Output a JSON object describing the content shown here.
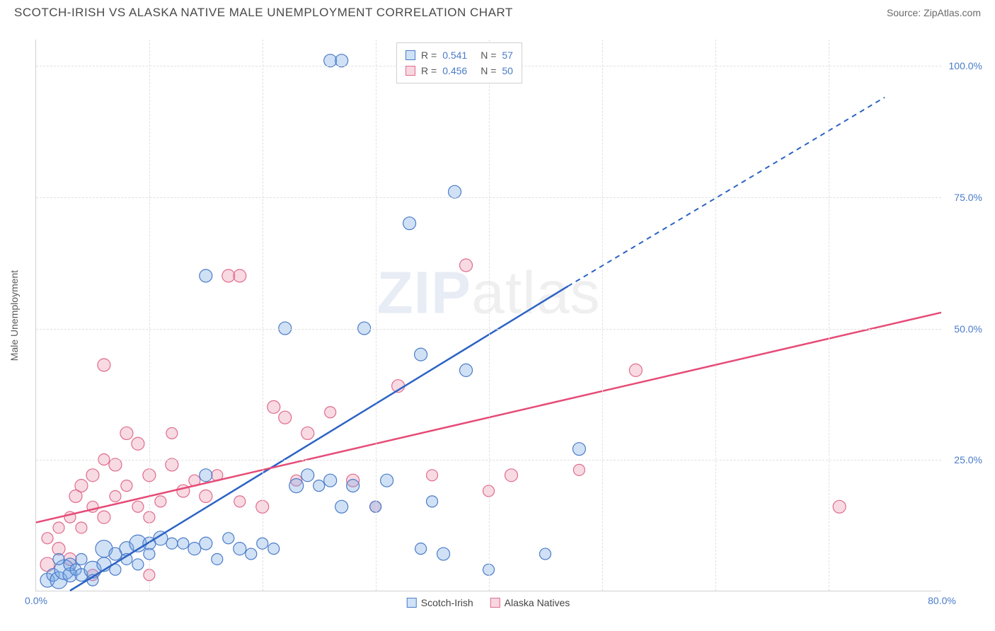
{
  "header": {
    "title": "SCOTCH-IRISH VS ALASKA NATIVE MALE UNEMPLOYMENT CORRELATION CHART",
    "source": "Source: ZipAtlas.com"
  },
  "chart": {
    "type": "scatter",
    "ylabel": "Male Unemployment",
    "xlim": [
      0,
      80
    ],
    "ylim": [
      0,
      105
    ],
    "xtick_labels": [
      "0.0%",
      "80.0%"
    ],
    "xtick_positions": [
      0,
      80
    ],
    "ytick_labels": [
      "25.0%",
      "50.0%",
      "75.0%",
      "100.0%"
    ],
    "ytick_positions": [
      25,
      50,
      75,
      100
    ],
    "grid_x_positions": [
      10,
      20,
      30,
      40,
      50,
      60,
      70
    ],
    "grid_y_positions": [
      25,
      50,
      75,
      100
    ],
    "grid_color": "#e0e0e0",
    "background_color": "#ffffff",
    "axis_color": "#d0d0d0",
    "tick_label_color": "#4a7bc8",
    "watermark": {
      "bold": "ZIP",
      "rest": "atlas"
    }
  },
  "legend_top": {
    "rows": [
      {
        "color_fill": "#cfe2f7",
        "color_stroke": "#4a7bc8",
        "r_label": "R =",
        "r_value": "0.541",
        "n_label": "N =",
        "n_value": "57"
      },
      {
        "color_fill": "#f8d7e0",
        "color_stroke": "#e06b8b",
        "r_label": "R =",
        "r_value": "0.456",
        "n_label": "N =",
        "n_value": "50"
      }
    ]
  },
  "legend_bottom": {
    "entries": [
      {
        "color_fill": "#cfe2f7",
        "color_stroke": "#4a7bc8",
        "label": "Scotch-Irish"
      },
      {
        "color_fill": "#f8d7e0",
        "color_stroke": "#e06b8b",
        "label": "Alaska Natives"
      }
    ]
  },
  "series": {
    "scotch_irish": {
      "marker_color_fill": "rgba(120,170,230,0.35)",
      "marker_color_stroke": "#4a7bc8",
      "marker_r_base": 8,
      "trendline_color": "#2b63c4",
      "trendline_solid": {
        "x1": 3,
        "y1": 0,
        "x2": 47,
        "y2": 58
      },
      "trendline_dashed": {
        "x1": 47,
        "y1": 58,
        "x2": 75,
        "y2": 94
      },
      "points": [
        [
          1,
          2,
          10
        ],
        [
          1.5,
          3,
          9
        ],
        [
          2,
          2,
          12
        ],
        [
          2.5,
          4,
          14
        ],
        [
          2,
          6,
          8
        ],
        [
          3,
          3,
          10
        ],
        [
          3,
          5,
          9
        ],
        [
          3.5,
          4,
          8
        ],
        [
          4,
          3,
          9
        ],
        [
          4,
          6,
          8
        ],
        [
          5,
          4,
          12
        ],
        [
          5,
          2,
          8
        ],
        [
          6,
          5,
          10
        ],
        [
          6,
          8,
          12
        ],
        [
          7,
          7,
          9
        ],
        [
          7,
          4,
          8
        ],
        [
          8,
          8,
          10
        ],
        [
          8,
          6,
          8
        ],
        [
          9,
          9,
          12
        ],
        [
          9,
          5,
          8
        ],
        [
          10,
          9,
          9
        ],
        [
          10,
          7,
          8
        ],
        [
          11,
          10,
          10
        ],
        [
          12,
          9,
          8
        ],
        [
          13,
          9,
          8
        ],
        [
          14,
          8,
          9
        ],
        [
          15,
          9,
          9
        ],
        [
          15,
          22,
          9
        ],
        [
          16,
          6,
          8
        ],
        [
          17,
          10,
          8
        ],
        [
          18,
          8,
          9
        ],
        [
          19,
          7,
          8
        ],
        [
          20,
          9,
          8
        ],
        [
          21,
          8,
          8
        ],
        [
          15,
          60,
          9
        ],
        [
          22,
          50,
          9
        ],
        [
          23,
          20,
          10
        ],
        [
          24,
          22,
          9
        ],
        [
          25,
          20,
          8
        ],
        [
          26,
          21,
          9
        ],
        [
          27,
          16,
          9
        ],
        [
          28,
          20,
          9
        ],
        [
          29,
          50,
          9
        ],
        [
          30,
          16,
          8
        ],
        [
          31,
          21,
          9
        ],
        [
          33,
          70,
          9
        ],
        [
          34,
          45,
          9
        ],
        [
          35,
          17,
          8
        ],
        [
          36,
          7,
          9
        ],
        [
          37,
          76,
          9
        ],
        [
          38,
          42,
          9
        ],
        [
          26,
          101,
          9
        ],
        [
          27,
          101,
          9
        ],
        [
          48,
          27,
          9
        ],
        [
          34,
          8,
          8
        ],
        [
          40,
          4,
          8
        ],
        [
          45,
          7,
          8
        ]
      ]
    },
    "alaska_native": {
      "marker_color_fill": "rgba(235,150,175,0.35)",
      "marker_color_stroke": "#e06b8b",
      "marker_r_base": 8,
      "trendline_color": "#e64b77",
      "trendline_solid": {
        "x1": 0,
        "y1": 13,
        "x2": 80,
        "y2": 53
      },
      "points": [
        [
          1,
          5,
          10
        ],
        [
          1,
          10,
          8
        ],
        [
          2,
          8,
          9
        ],
        [
          2,
          12,
          8
        ],
        [
          3,
          6,
          9
        ],
        [
          3,
          14,
          8
        ],
        [
          3.5,
          18,
          9
        ],
        [
          4,
          12,
          8
        ],
        [
          4,
          20,
          9
        ],
        [
          5,
          16,
          8
        ],
        [
          5,
          22,
          9
        ],
        [
          6,
          25,
          8
        ],
        [
          6,
          14,
          9
        ],
        [
          7,
          18,
          8
        ],
        [
          7,
          24,
          9
        ],
        [
          8,
          20,
          8
        ],
        [
          8,
          30,
          9
        ],
        [
          9,
          16,
          8
        ],
        [
          9,
          28,
          9
        ],
        [
          10,
          14,
          8
        ],
        [
          10,
          22,
          9
        ],
        [
          11,
          17,
          8
        ],
        [
          12,
          24,
          9
        ],
        [
          12,
          30,
          8
        ],
        [
          13,
          19,
          9
        ],
        [
          14,
          21,
          8
        ],
        [
          15,
          18,
          9
        ],
        [
          6,
          43,
          9
        ],
        [
          16,
          22,
          8
        ],
        [
          17,
          60,
          9
        ],
        [
          18,
          60,
          9
        ],
        [
          18,
          17,
          8
        ],
        [
          20,
          16,
          9
        ],
        [
          21,
          35,
          9
        ],
        [
          22,
          33,
          9
        ],
        [
          23,
          21,
          8
        ],
        [
          24,
          30,
          9
        ],
        [
          26,
          34,
          8
        ],
        [
          28,
          21,
          9
        ],
        [
          30,
          16,
          8
        ],
        [
          32,
          39,
          9
        ],
        [
          35,
          22,
          8
        ],
        [
          38,
          62,
          9
        ],
        [
          40,
          19,
          8
        ],
        [
          42,
          22,
          9
        ],
        [
          48,
          23,
          8
        ],
        [
          53,
          42,
          9
        ],
        [
          71,
          16,
          9
        ],
        [
          5,
          3,
          8
        ],
        [
          10,
          3,
          8
        ]
      ]
    }
  }
}
